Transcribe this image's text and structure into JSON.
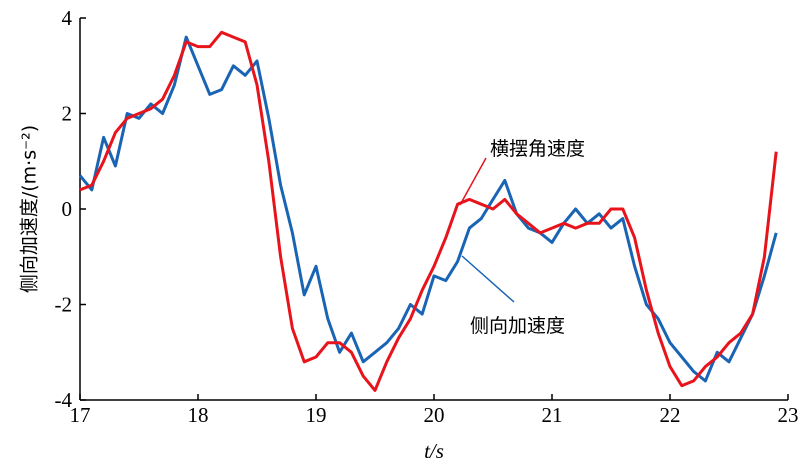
{
  "chart_data": {
    "type": "line",
    "xlabel": "t/s",
    "ylabel": "侧向加速度/(m·s⁻²)",
    "x": [
      17.0,
      17.1,
      17.2,
      17.3,
      17.4,
      17.5,
      17.6,
      17.7,
      17.8,
      17.9,
      18.0,
      18.1,
      18.2,
      18.3,
      18.4,
      18.5,
      18.6,
      18.7,
      18.8,
      18.9,
      19.0,
      19.1,
      19.2,
      19.3,
      19.4,
      19.5,
      19.6,
      19.7,
      19.8,
      19.9,
      20.0,
      20.1,
      20.2,
      20.3,
      20.4,
      20.5,
      20.6,
      20.7,
      20.8,
      20.9,
      21.0,
      21.1,
      21.2,
      21.3,
      21.4,
      21.5,
      21.6,
      21.7,
      21.8,
      21.9,
      22.0,
      22.1,
      22.2,
      22.3,
      22.4,
      22.5,
      22.6,
      22.7,
      22.8,
      22.9
    ],
    "series": [
      {
        "name": "横摆角速度",
        "color": "#e8141c",
        "values": [
          0.4,
          0.5,
          1.0,
          1.6,
          1.9,
          2.0,
          2.1,
          2.3,
          2.8,
          3.5,
          3.4,
          3.4,
          3.7,
          3.6,
          3.5,
          2.6,
          1.0,
          -1.0,
          -2.5,
          -3.2,
          -3.1,
          -2.8,
          -2.8,
          -3.0,
          -3.5,
          -3.8,
          -3.2,
          -2.7,
          -2.3,
          -1.7,
          -1.2,
          -0.6,
          0.1,
          0.2,
          0.1,
          0.0,
          0.2,
          -0.1,
          -0.3,
          -0.5,
          -0.4,
          -0.3,
          -0.4,
          -0.3,
          -0.3,
          0.0,
          0.0,
          -0.6,
          -1.7,
          -2.6,
          -3.3,
          -3.7,
          -3.6,
          -3.3,
          -3.1,
          -2.8,
          -2.6,
          -2.2,
          -1.0,
          1.2
        ]
      },
      {
        "name": "侧向加速度",
        "color": "#1a64b4",
        "values": [
          0.7,
          0.4,
          1.5,
          0.9,
          2.0,
          1.9,
          2.2,
          2.0,
          2.6,
          3.6,
          3.0,
          2.4,
          2.5,
          3.0,
          2.8,
          3.1,
          1.9,
          0.5,
          -0.5,
          -1.8,
          -1.2,
          -2.3,
          -3.0,
          -2.6,
          -3.2,
          -3.0,
          -2.8,
          -2.5,
          -2.0,
          -2.2,
          -1.4,
          -1.5,
          -1.1,
          -0.4,
          -0.2,
          0.2,
          0.6,
          -0.1,
          -0.4,
          -0.5,
          -0.7,
          -0.3,
          0.0,
          -0.3,
          -0.1,
          -0.4,
          -0.2,
          -1.2,
          -2.0,
          -2.3,
          -2.8,
          -3.1,
          -3.4,
          -3.6,
          -3.0,
          -3.2,
          -2.7,
          -2.2,
          -1.4,
          -0.5
        ]
      }
    ],
    "xlim": [
      17,
      23
    ],
    "xticks": [
      17,
      18,
      19,
      20,
      21,
      22,
      23
    ],
    "ylim": [
      -4,
      4
    ],
    "yticks": [
      -4,
      -2,
      0,
      2,
      4
    ]
  }
}
